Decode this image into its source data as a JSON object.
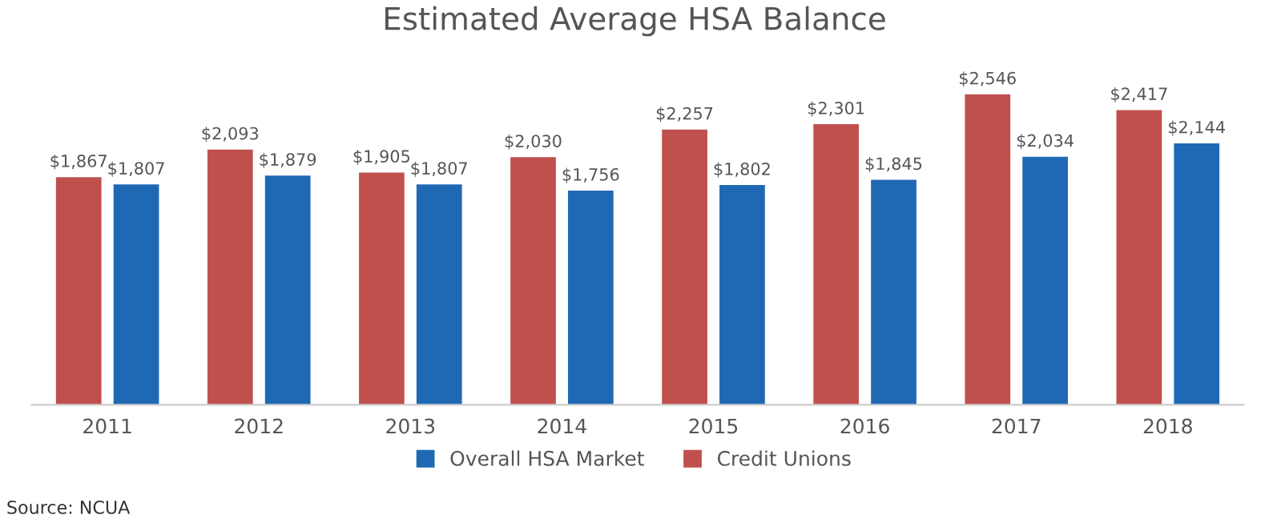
{
  "chart_data": {
    "type": "bar",
    "title": "Estimated Average HSA Balance",
    "categories": [
      "2011",
      "2012",
      "2013",
      "2014",
      "2015",
      "2016",
      "2017",
      "2018"
    ],
    "series": [
      {
        "name": "Credit Unions",
        "color": "#c0504d",
        "values": [
          1867,
          2093,
          1905,
          2030,
          2257,
          2301,
          2546,
          2417
        ],
        "value_labels": [
          "$1,867",
          "$2,093",
          "$1,905",
          "$2,030",
          "$2,257",
          "$2,301",
          "$2,546",
          "$2,417"
        ]
      },
      {
        "name": "Overall HSA Market",
        "color": "#1f69b4",
        "values": [
          1807,
          1879,
          1807,
          1756,
          1802,
          1845,
          2034,
          2144
        ],
        "value_labels": [
          "$1,807",
          "$1,879",
          "$1,807",
          "$1,756",
          "$1,802",
          "$1,845",
          "$2,034",
          "$2,144"
        ]
      }
    ],
    "tick_labels": "x",
    "grid": false,
    "legend": "bottom",
    "annotations": [
      "Source: NCUA"
    ]
  }
}
